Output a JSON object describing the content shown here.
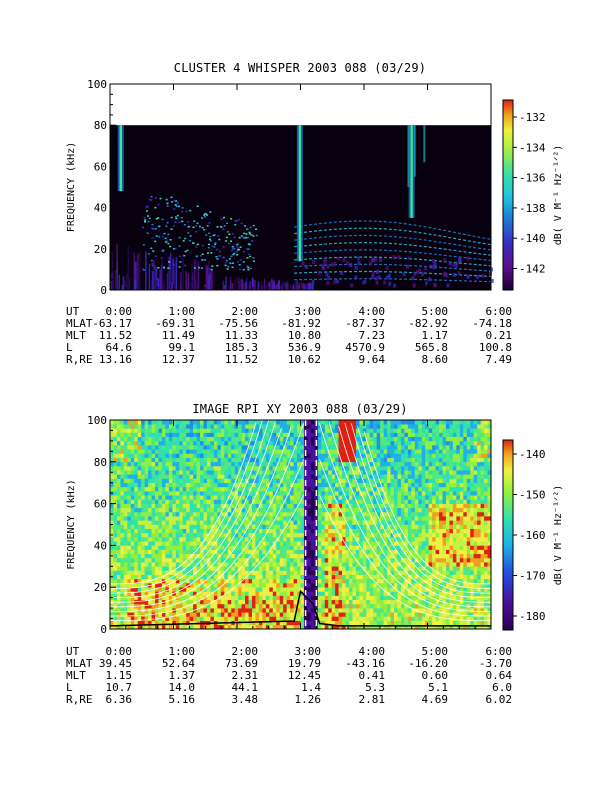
{
  "panels": [
    {
      "title": "CLUSTER 4 WHISPER 2003 088 (03/29)",
      "ylabel": "FREQUENCY (kHz)",
      "yticks": [
        "0",
        "20",
        "40",
        "60",
        "80",
        "100"
      ],
      "xticks": [
        "0:00",
        "1:00",
        "2:00",
        "3:00",
        "4:00",
        "5:00",
        "6:00"
      ],
      "colorbar": {
        "label": "dB( V M⁻¹ Hz⁻¹ᐟ²)",
        "ticks": [
          "-132",
          "-134",
          "-136",
          "-138",
          "-140",
          "-142"
        ]
      },
      "ephemeris": [
        {
          "label": "UT",
          "values": [
            "0:00",
            "1:00",
            "2:00",
            "3:00",
            "4:00",
            "5:00",
            "6:00"
          ]
        },
        {
          "label": "MLAT",
          "values": [
            "-63.17",
            "-69.31",
            "-75.56",
            "-81.92",
            "-87.37",
            "-82.92",
            "-74.18"
          ]
        },
        {
          "label": "MLT",
          "values": [
            "11.52",
            "11.49",
            "11.33",
            "10.80",
            "7.23",
            "1.17",
            "0.21"
          ]
        },
        {
          "label": "L",
          "values": [
            "64.6",
            "99.1",
            "185.3",
            "536.9",
            "4570.9",
            "565.8",
            "100.8"
          ]
        },
        {
          "label": "R,RE",
          "values": [
            "13.16",
            "12.37",
            "11.52",
            "10.62",
            "9.64",
            "8.60",
            "7.49"
          ]
        }
      ]
    },
    {
      "title": "IMAGE RPI XY 2003 088 (03/29)",
      "ylabel": "FREQUENCY (kHz)",
      "yticks": [
        "0",
        "20",
        "40",
        "60",
        "80",
        "100"
      ],
      "xticks": [
        "0:00",
        "1:00",
        "2:00",
        "3:00",
        "4:00",
        "5:00",
        "6:00"
      ],
      "colorbar": {
        "label": "dB( V M⁻¹ Hz⁻¹ᐟ²)",
        "ticks": [
          "-140",
          "-150",
          "-160",
          "-170",
          "-180"
        ]
      },
      "ephemeris": [
        {
          "label": "UT",
          "values": [
            "0:00",
            "1:00",
            "2:00",
            "3:00",
            "4:00",
            "5:00",
            "6:00"
          ]
        },
        {
          "label": "MLAT",
          "values": [
            "39.45",
            "52.64",
            "73.69",
            "19.79",
            "-43.16",
            "-16.20",
            "-3.70"
          ]
        },
        {
          "label": "MLT",
          "values": [
            "1.15",
            "1.37",
            "2.31",
            "12.45",
            "0.41",
            "0.60",
            "0.64"
          ]
        },
        {
          "label": "L",
          "values": [
            "10.7",
            "14.0",
            "44.1",
            "1.4",
            "5.3",
            "5.1",
            "6.0"
          ]
        },
        {
          "label": "R,RE",
          "values": [
            "6.36",
            "5.16",
            "3.48",
            "1.26",
            "2.81",
            "4.69",
            "6.02"
          ]
        }
      ]
    }
  ],
  "chart_data": [
    {
      "type": "heatmap",
      "title": "CLUSTER 4 WHISPER 2003 088 (03/29)",
      "xlabel": "",
      "ylabel": "FREQUENCY (kHz)",
      "xlim": [
        "0:00",
        "6:00"
      ],
      "ylim": [
        0,
        100
      ],
      "data_extent_khz": [
        0,
        80
      ],
      "colorbar_range_db": [
        -144,
        -131
      ],
      "colorbar_ticks": [
        -132,
        -134,
        -136,
        -138,
        -140,
        -142
      ],
      "features": [
        {
          "kind": "burst",
          "t_start": "0:10",
          "t_end": "0:12",
          "f_range": [
            48,
            80
          ],
          "db": -133
        },
        {
          "kind": "burst",
          "t_start": "2:58",
          "t_end": "3:02",
          "f_range": [
            14,
            80
          ],
          "db": -133
        },
        {
          "kind": "burst",
          "t_start": "4:43",
          "t_end": "4:47",
          "f_range": [
            35,
            80
          ],
          "db": -133
        },
        {
          "kind": "harmonic-bands",
          "t_start": "2:50",
          "t_end": "6:00",
          "f_range": [
            5,
            30
          ],
          "db": -138
        }
      ]
    },
    {
      "type": "heatmap",
      "title": "IMAGE RPI XY 2003 088 (03/29)",
      "xlabel": "",
      "ylabel": "FREQUENCY (kHz)",
      "xlim": [
        "0:00",
        "6:00"
      ],
      "ylim": [
        0,
        100
      ],
      "colorbar_range_db": [
        -185,
        -136
      ],
      "colorbar_ticks": [
        -140,
        -150,
        -160,
        -170,
        -180
      ],
      "features": [
        {
          "kind": "gap",
          "t_start": "3:07",
          "t_end": "3:15"
        },
        {
          "kind": "dashed-line",
          "t": "3:05"
        },
        {
          "kind": "dashed-line",
          "t": "3:13"
        },
        {
          "kind": "hot-band",
          "t_start": "3:42",
          "t_end": "3:50",
          "f_range": [
            85,
            100
          ],
          "db": -140
        }
      ]
    }
  ],
  "colors": {
    "background": "#ffffff",
    "axis": "#000000",
    "overlay_line": "#ffffff",
    "colormap": [
      "#1a0033",
      "#5b0f8a",
      "#3a2cc8",
      "#1e7fd8",
      "#22c8d8",
      "#40e0a0",
      "#a8f040",
      "#f0f040",
      "#f0a020",
      "#e02010"
    ]
  }
}
